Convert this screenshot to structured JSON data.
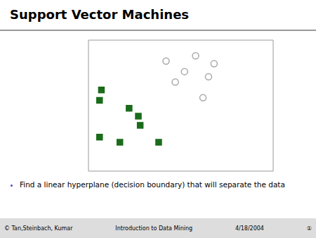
{
  "chart_data": {
    "type": "scatter",
    "title": "Support Vector Machines",
    "xlim": [
      0,
      1
    ],
    "ylim": [
      0,
      1
    ],
    "tick_labels": false,
    "grid": false,
    "series": [
      {
        "color": "#AAAAAA",
        "marker": "open_circle",
        "x": [
          0.42,
          0.58,
          0.52,
          0.68,
          0.47,
          0.65,
          0.62
        ],
        "values": [
          0.84,
          0.88,
          0.76,
          0.82,
          0.68,
          0.72,
          0.56
        ]
      },
      {
        "color": "#1A6B1A",
        "marker": "square",
        "x": [
          0.07,
          0.06,
          0.22,
          0.27,
          0.28,
          0.06,
          0.17,
          0.38
        ],
        "values": [
          0.62,
          0.54,
          0.48,
          0.42,
          0.35,
          0.26,
          0.22,
          0.22
        ]
      }
    ],
    "annotations": [
      "Find a linear hyperplane (decision boundary) that will separate the data",
      "© Tan,Steinbach, Kumar",
      "Introduction to Data Mining",
      "4/18/2004",
      "①"
    ]
  }
}
